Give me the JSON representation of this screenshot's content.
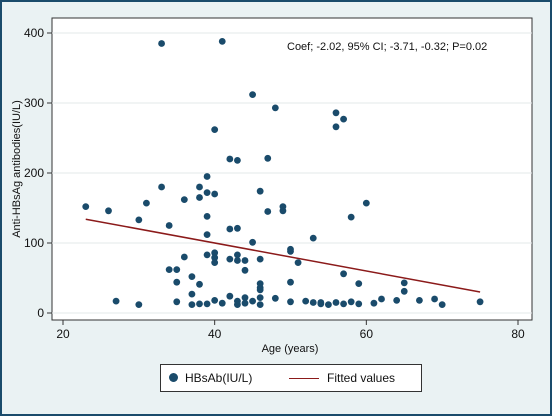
{
  "chart_data": {
    "type": "scatter",
    "xlabel": "Age (years)",
    "ylabel": "Anti-HBsAg  antibodies(IU/L)",
    "xlim": [
      20,
      80
    ],
    "ylim": [
      0,
      400
    ],
    "xticks": [
      20,
      40,
      60,
      80
    ],
    "yticks": [
      0,
      100,
      200,
      300,
      400
    ],
    "grid": "horizontal",
    "annotation": "Coef; -2.02, 95% CI; -3.71, -0.32; P=0.02",
    "legend_position": "bottom",
    "series": [
      {
        "name": "HBsAb(IU/L)",
        "kind": "scatter",
        "color": "#1a4b6b",
        "points": [
          [
            23,
            152
          ],
          [
            26,
            146
          ],
          [
            27,
            17
          ],
          [
            30,
            133
          ],
          [
            30,
            12
          ],
          [
            31,
            157
          ],
          [
            33,
            385
          ],
          [
            33,
            180
          ],
          [
            34,
            125
          ],
          [
            34,
            62
          ],
          [
            35,
            62
          ],
          [
            35,
            16
          ],
          [
            35,
            44
          ],
          [
            36,
            80
          ],
          [
            36,
            162
          ],
          [
            37,
            52
          ],
          [
            37,
            12
          ],
          [
            37,
            27
          ],
          [
            38,
            165
          ],
          [
            38,
            180
          ],
          [
            38,
            13
          ],
          [
            38,
            41
          ],
          [
            39,
            172
          ],
          [
            39,
            138
          ],
          [
            39,
            195
          ],
          [
            39,
            83
          ],
          [
            39,
            13
          ],
          [
            39,
            112
          ],
          [
            40,
            262
          ],
          [
            40,
            170
          ],
          [
            40,
            86
          ],
          [
            40,
            79
          ],
          [
            40,
            72
          ],
          [
            40,
            18
          ],
          [
            41,
            388
          ],
          [
            41,
            14
          ],
          [
            42,
            120
          ],
          [
            42,
            220
          ],
          [
            42,
            24
          ],
          [
            42,
            77
          ],
          [
            43,
            121
          ],
          [
            43,
            218
          ],
          [
            43,
            83
          ],
          [
            43,
            75
          ],
          [
            43,
            17
          ],
          [
            43,
            12
          ],
          [
            44,
            75
          ],
          [
            44,
            22
          ],
          [
            44,
            14
          ],
          [
            44,
            61
          ],
          [
            45,
            312
          ],
          [
            45,
            101
          ],
          [
            45,
            17
          ],
          [
            46,
            174
          ],
          [
            46,
            42
          ],
          [
            46,
            36
          ],
          [
            46,
            22
          ],
          [
            46,
            12
          ],
          [
            46,
            33
          ],
          [
            46,
            77
          ],
          [
            47,
            221
          ],
          [
            47,
            145
          ],
          [
            48,
            293
          ],
          [
            48,
            21
          ],
          [
            49,
            152
          ],
          [
            49,
            146
          ],
          [
            50,
            91
          ],
          [
            50,
            88
          ],
          [
            50,
            44
          ],
          [
            50,
            16
          ],
          [
            51,
            72
          ],
          [
            52,
            17
          ],
          [
            53,
            107
          ],
          [
            53,
            15
          ],
          [
            54,
            13
          ],
          [
            54,
            15
          ],
          [
            55,
            12
          ],
          [
            56,
            286
          ],
          [
            56,
            266
          ],
          [
            56,
            15
          ],
          [
            57,
            277
          ],
          [
            57,
            56
          ],
          [
            57,
            13
          ],
          [
            58,
            137
          ],
          [
            58,
            16
          ],
          [
            59,
            13
          ],
          [
            59,
            42
          ],
          [
            60,
            157
          ],
          [
            61,
            14
          ],
          [
            62,
            20
          ],
          [
            64,
            18
          ],
          [
            65,
            43
          ],
          [
            65,
            31
          ],
          [
            67,
            18
          ],
          [
            69,
            20
          ],
          [
            70,
            12
          ],
          [
            75,
            16
          ]
        ]
      },
      {
        "name": "Fitted values",
        "kind": "line",
        "color": "#8b1a1a",
        "x": [
          23,
          75
        ],
        "y": [
          134,
          30
        ]
      }
    ]
  }
}
